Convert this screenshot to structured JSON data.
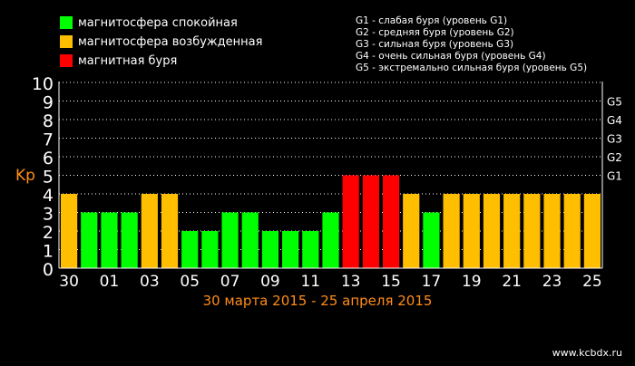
{
  "legend": [
    {
      "label": "магнитосфера спокойная",
      "color": "#00ff00"
    },
    {
      "label": "магнитосфера возбужденная",
      "color": "#ffbf00"
    },
    {
      "label": "магнитная буря",
      "color": "#ff0000"
    }
  ],
  "glevels": [
    "G1 - слабая буря (уровень G1)",
    "G2 - средняя буря (уровень G2)",
    "G3 - сильная буря (уровень G3)",
    "G4 - очень сильная буря (уровень G4)",
    "G5 - экстремально сильная буря (уровень G5)"
  ],
  "date_range": "30 марта 2015 - 25 апреля 2015",
  "site": "www.kcbdx.ru",
  "chart_data": {
    "type": "bar",
    "ylabel": "Kp",
    "ylim": [
      0,
      10
    ],
    "yticks": [
      0,
      1,
      2,
      3,
      4,
      5,
      6,
      7,
      8,
      9,
      10
    ],
    "right_ticks": [
      {
        "value": 5,
        "label": "G1"
      },
      {
        "value": 6,
        "label": "G2"
      },
      {
        "value": 7,
        "label": "G3"
      },
      {
        "value": 8,
        "label": "G4"
      },
      {
        "value": 9,
        "label": "G5"
      }
    ],
    "categories": [
      "30",
      "31",
      "01",
      "02",
      "03",
      "04",
      "05",
      "06",
      "07",
      "08",
      "09",
      "10",
      "11",
      "12",
      "13",
      "14",
      "15",
      "16",
      "17",
      "18",
      "19",
      "20",
      "21",
      "22",
      "23",
      "24",
      "25"
    ],
    "xtick_labels": [
      "30",
      "01",
      "03",
      "05",
      "07",
      "09",
      "11",
      "13",
      "15",
      "17",
      "19",
      "21",
      "23",
      "25"
    ],
    "values": [
      4,
      3,
      3,
      3,
      4,
      4,
      2,
      2,
      3,
      3,
      2,
      2,
      2,
      3,
      5,
      5,
      5,
      4,
      3,
      4,
      4,
      4,
      4,
      4,
      4,
      4,
      4
    ],
    "colors": {
      "quiet": "#00ff00",
      "active": "#ffbf00",
      "storm": "#ff0000"
    },
    "grid": true
  }
}
